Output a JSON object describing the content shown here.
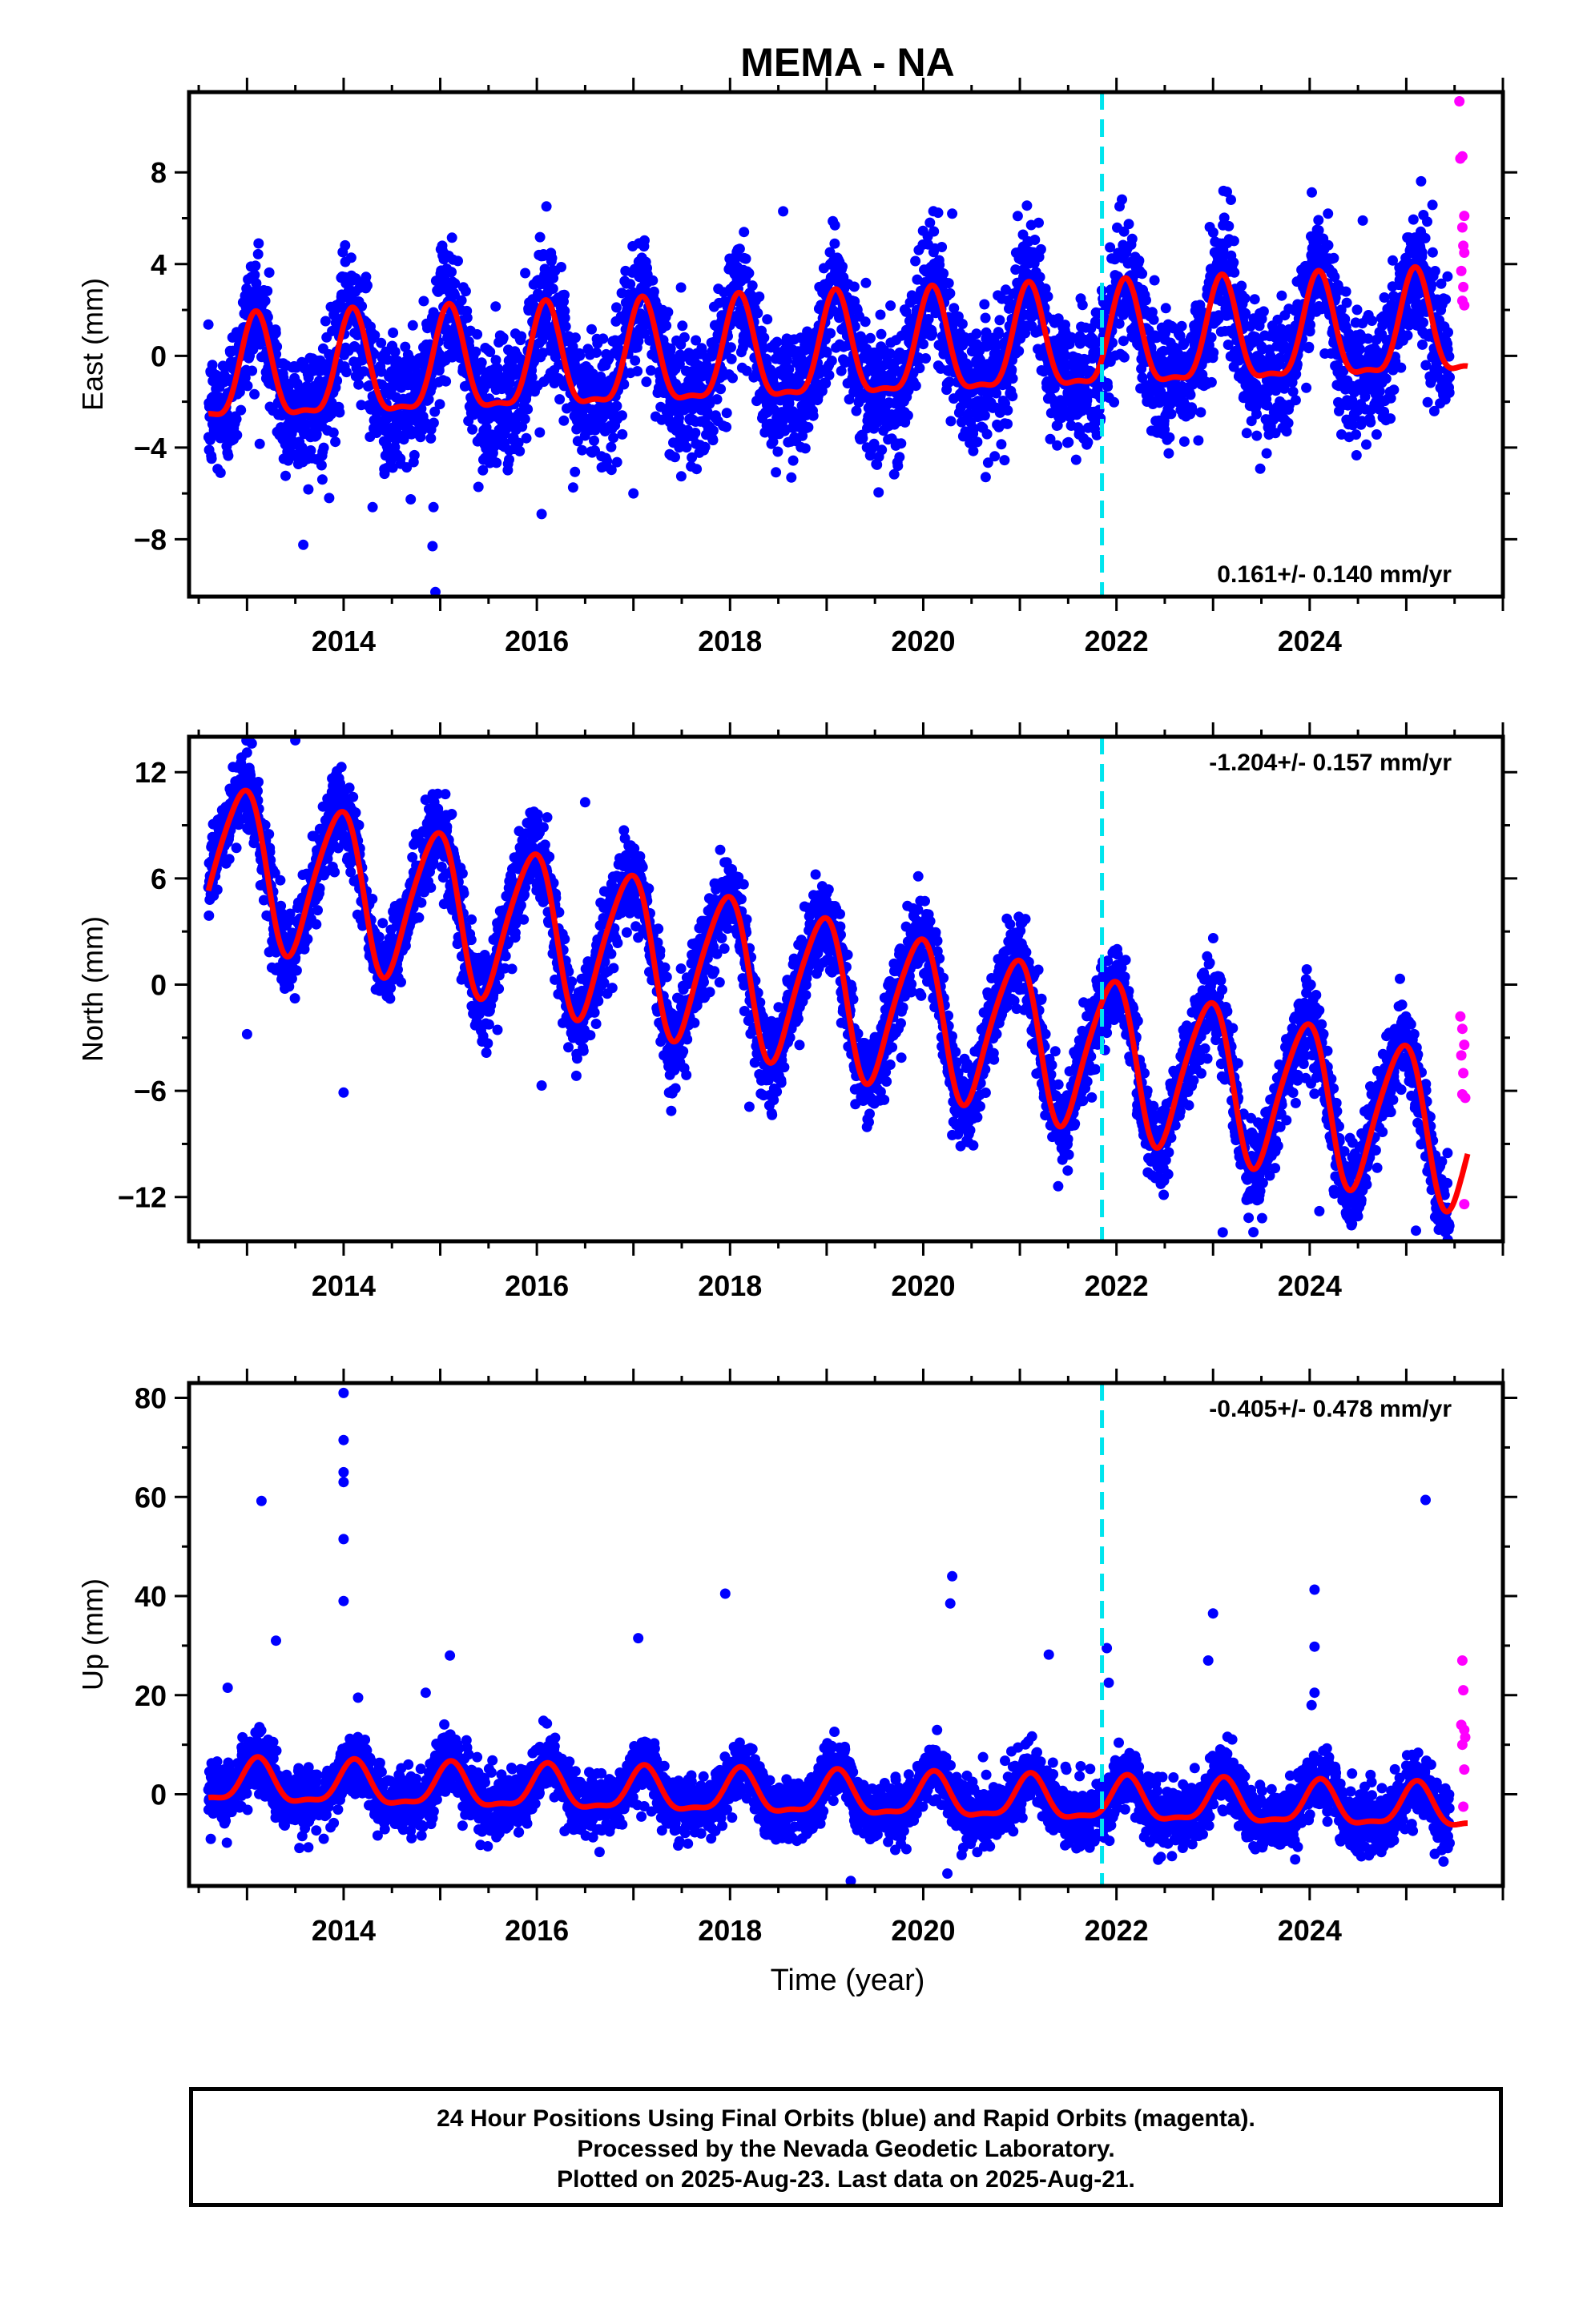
{
  "footer": {
    "line1": "24 Hour Positions Using Final Orbits (blue) and Rapid Orbits (magenta).",
    "line2": "Processed by the Nevada Geodetic Laboratory.",
    "line3": "Plotted on 2025-Aug-23. Last data on 2025-Aug-21."
  },
  "chart_data": {
    "type": "scatter",
    "title": "MEMA - NA",
    "xlabel": "Time (year)",
    "xlim": [
      2012.4,
      2026.0
    ],
    "x_ticks": [
      2014,
      2016,
      2018,
      2020,
      2022,
      2024
    ],
    "data_start": 2012.6,
    "rapid_start": 2025.45,
    "last_data": 2025.64,
    "vertical_marker_x": 2021.85,
    "colors": {
      "final_orbits": "#0000ff",
      "rapid_orbits": "#ff00ff",
      "model_fit": "#ff0000",
      "marker": "#00e5ee"
    },
    "panels": [
      {
        "name": "east",
        "ylabel": "East (mm)",
        "ylim": [
          -10.5,
          11.5
        ],
        "y_ticks": [
          -8,
          -4,
          0,
          4,
          8
        ],
        "rate_label": "0.161+/- 0.140 mm/yr",
        "rate_position": "bottom-right",
        "model": {
          "ref_year": 2019.0,
          "offset": 0.0,
          "trend": 0.16,
          "ann_amp": 2.2,
          "ann_phase": 1.0,
          "semi_amp": 0.7,
          "semi_phase": 0.4
        },
        "noise_sd": 1.4,
        "outliers": [
          [
            2014.95,
            -10.3
          ],
          [
            2014.92,
            -8.3
          ],
          [
            2014.93,
            -6.6
          ],
          [
            2013.85,
            -6.2
          ],
          [
            2014.3,
            -6.6
          ],
          [
            2016.05,
            -6.9
          ],
          [
            2013.12,
            4.9
          ],
          [
            2018.55,
            6.3
          ],
          [
            2020.3,
            6.2
          ],
          [
            2024.55,
            5.9
          ],
          [
            2017.0,
            -6.0
          ]
        ],
        "rapid": [
          [
            2025.55,
            11.1
          ],
          [
            2025.56,
            8.6
          ],
          [
            2025.58,
            8.7
          ],
          [
            2025.6,
            6.1
          ],
          [
            2025.58,
            5.6
          ],
          [
            2025.59,
            4.8
          ],
          [
            2025.6,
            4.5
          ],
          [
            2025.57,
            3.7
          ],
          [
            2025.59,
            3.0
          ],
          [
            2025.6,
            2.2
          ],
          [
            2025.58,
            2.4
          ]
        ]
      },
      {
        "name": "north",
        "ylabel": "North (mm)",
        "ylim": [
          -14.5,
          14.0
        ],
        "y_ticks": [
          -12,
          -6,
          0,
          6,
          12
        ],
        "rate_label": "-1.204+/- 0.157 mm/yr",
        "rate_position": "top-right",
        "model": {
          "ref_year": 2019.0,
          "offset": -0.5,
          "trend": -1.2,
          "ann_amp": 4.3,
          "ann_phase": 1.9,
          "semi_amp": 0.6,
          "semi_phase": 0.3
        },
        "noise_sd": 1.2,
        "outliers": [
          [
            2013.0,
            -2.8
          ],
          [
            2013.5,
            13.8
          ],
          [
            2014.0,
            -6.1
          ],
          [
            2016.05,
            -5.7
          ],
          [
            2018.2,
            -6.9
          ],
          [
            2020.3,
            -8.5
          ],
          [
            2023.1,
            -14.0
          ],
          [
            2025.1,
            -13.9
          ],
          [
            2024.1,
            -12.8
          ],
          [
            2016.5,
            10.3
          ]
        ],
        "rapid": [
          [
            2025.56,
            -1.8
          ],
          [
            2025.58,
            -2.5
          ],
          [
            2025.6,
            -3.4
          ],
          [
            2025.57,
            -4.0
          ],
          [
            2025.59,
            -5.0
          ],
          [
            2025.61,
            -6.4
          ],
          [
            2025.58,
            -6.2
          ],
          [
            2025.6,
            -12.4
          ]
        ]
      },
      {
        "name": "up",
        "ylabel": "Up (mm)",
        "ylim": [
          -18.5,
          83.0
        ],
        "y_ticks": [
          0,
          20,
          40,
          60,
          80
        ],
        "rate_label": "-0.405+/- 0.478 mm/yr",
        "rate_position": "top-right",
        "model": {
          "ref_year": 2019.0,
          "offset": -0.4,
          "trend": -0.4,
          "ann_amp": 4.2,
          "ann_phase": 0.9,
          "semi_amp": 1.4,
          "semi_phase": 0.1
        },
        "noise_sd": 3.0,
        "outliers": [
          [
            2013.15,
            59.2
          ],
          [
            2013.3,
            31.0
          ],
          [
            2012.8,
            21.5
          ],
          [
            2014.0,
            81.0
          ],
          [
            2014.0,
            71.5
          ],
          [
            2014.0,
            65.0
          ],
          [
            2014.0,
            63.0
          ],
          [
            2014.0,
            51.5
          ],
          [
            2014.0,
            39.0
          ],
          [
            2014.15,
            19.5
          ],
          [
            2015.1,
            28.0
          ],
          [
            2014.85,
            20.5
          ],
          [
            2017.05,
            31.5
          ],
          [
            2017.95,
            40.5
          ],
          [
            2020.3,
            44.0
          ],
          [
            2020.28,
            38.5
          ],
          [
            2021.3,
            28.2
          ],
          [
            2021.9,
            29.5
          ],
          [
            2021.92,
            22.5
          ],
          [
            2023.0,
            36.5
          ],
          [
            2022.95,
            27.0
          ],
          [
            2024.05,
            41.3
          ],
          [
            2024.05,
            29.8
          ],
          [
            2024.05,
            20.5
          ],
          [
            2024.02,
            18.0
          ],
          [
            2025.2,
            59.4
          ],
          [
            2019.25,
            -17.5
          ],
          [
            2020.25,
            -16.0
          ]
        ],
        "rapid": [
          [
            2025.58,
            27.0
          ],
          [
            2025.59,
            21.0
          ],
          [
            2025.57,
            14.0
          ],
          [
            2025.6,
            13.0
          ],
          [
            2025.61,
            11.5
          ],
          [
            2025.58,
            10.0
          ],
          [
            2025.6,
            5.0
          ],
          [
            2025.59,
            -2.5
          ]
        ]
      }
    ]
  }
}
